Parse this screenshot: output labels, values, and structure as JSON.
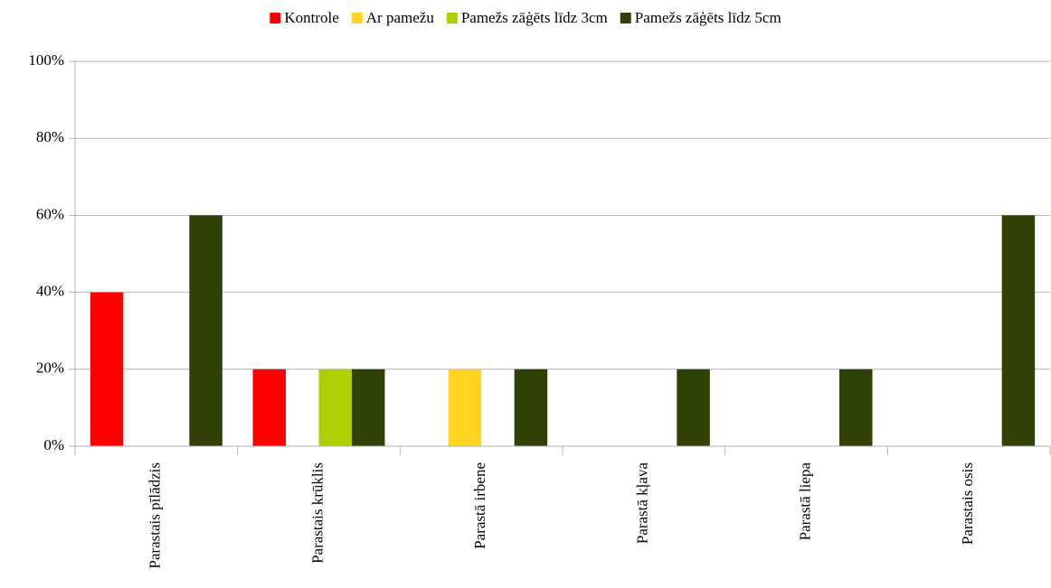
{
  "chart_data": {
    "type": "bar",
    "categories": [
      "Parastais pīlādzis",
      "Parastais krūklis",
      "Parastā irbene",
      "Parastā kļava",
      "Parastā liepa",
      "Parastais osis"
    ],
    "series": [
      {
        "name": "Kontrole",
        "color": "#ff0000",
        "values": [
          40,
          20,
          0,
          0,
          0,
          0
        ]
      },
      {
        "name": "Ar pamežu",
        "color": "#ffd320",
        "values": [
          0,
          0,
          20,
          0,
          0,
          0
        ]
      },
      {
        "name": "Pamežs zāģēts līdz 3cm",
        "color": "#aecf00",
        "values": [
          0,
          20,
          0,
          0,
          0,
          0
        ]
      },
      {
        "name": "Pamežs zāģēts līdz 5cm",
        "color": "#314004",
        "values": [
          60,
          20,
          20,
          20,
          20,
          60
        ]
      }
    ],
    "ylim": [
      0,
      100
    ],
    "yticks": [
      {
        "value": 0,
        "label": "0%"
      },
      {
        "value": 20,
        "label": "20%"
      },
      {
        "value": 40,
        "label": "40%"
      },
      {
        "value": 60,
        "label": "60%"
      },
      {
        "value": 80,
        "label": "80%"
      },
      {
        "value": 100,
        "label": "100%"
      }
    ],
    "grid": true,
    "legend": "top"
  }
}
